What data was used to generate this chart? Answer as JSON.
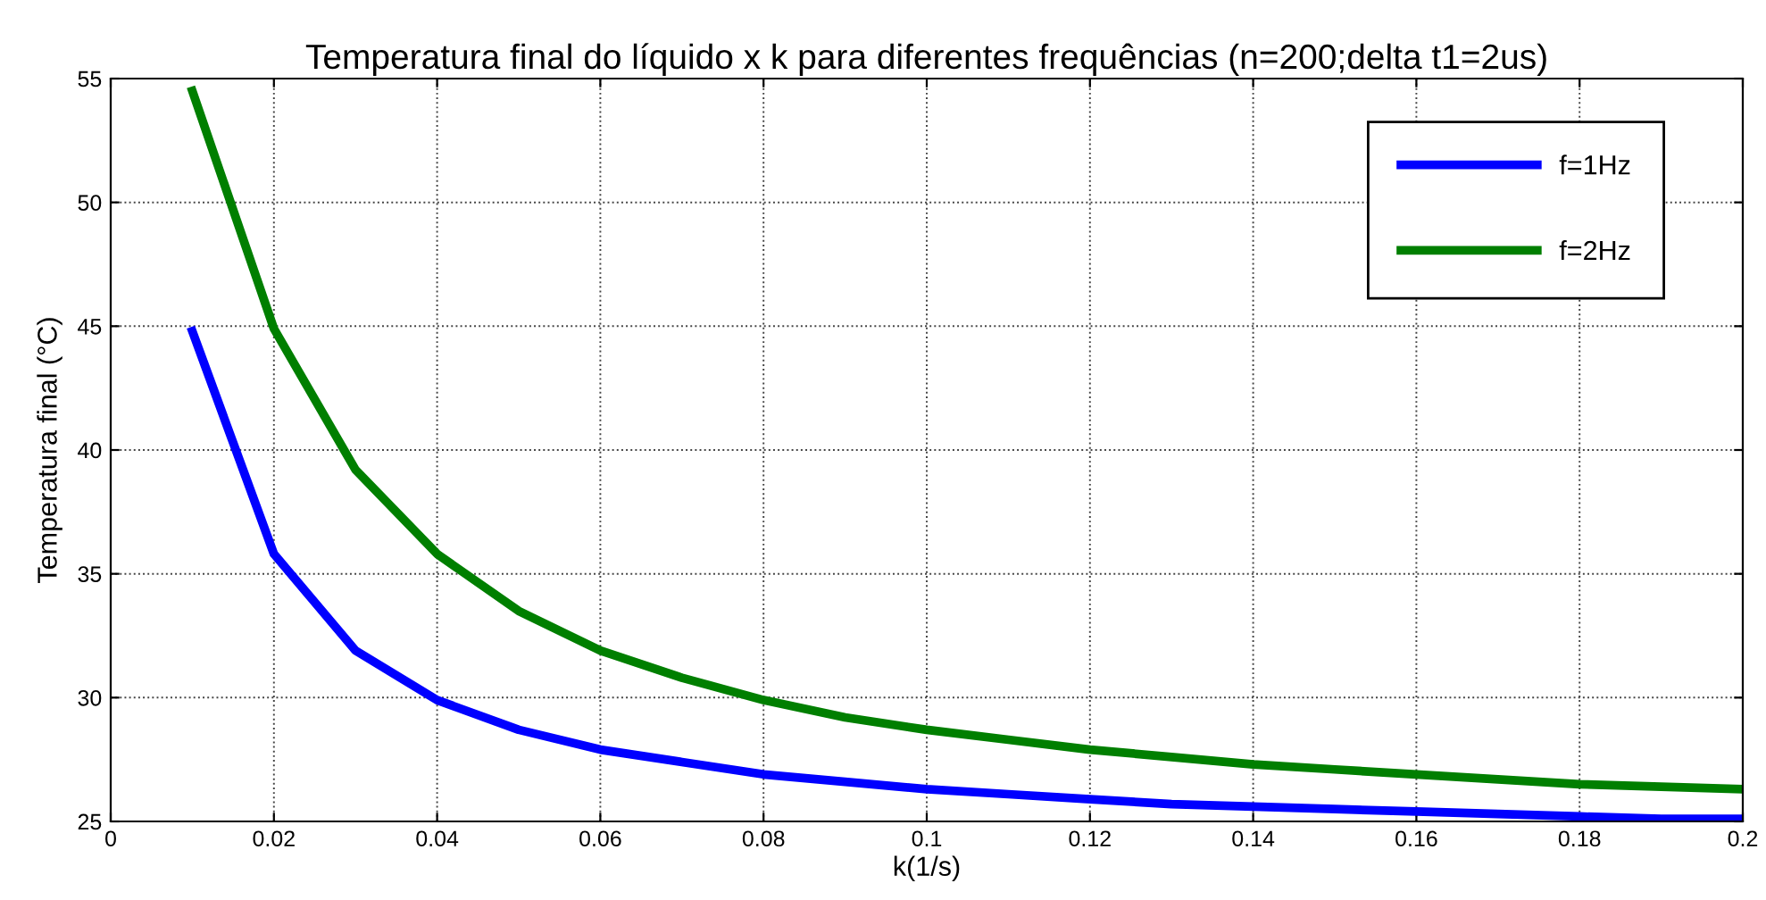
{
  "chart_data": {
    "type": "line",
    "title": "Temperatura final do líquido x k para diferentes frequências (n=200;delta t1=2us)",
    "xlabel": "k(1/s)",
    "ylabel": "Temperatura final (°C)",
    "x": [
      0.01,
      0.02,
      0.03,
      0.04,
      0.05,
      0.06,
      0.07,
      0.08,
      0.09,
      0.1,
      0.11,
      0.12,
      0.13,
      0.14,
      0.15,
      0.16,
      0.17,
      0.18,
      0.19,
      0.2
    ],
    "series": [
      {
        "name": "f=1Hz",
        "color": "#0000ff",
        "values": [
          44.8,
          35.8,
          31.9,
          29.9,
          28.7,
          27.9,
          27.4,
          26.9,
          26.6,
          26.3,
          26.1,
          25.9,
          25.7,
          25.6,
          25.5,
          25.4,
          25.3,
          25.2,
          25.1,
          25.1
        ]
      },
      {
        "name": "f=2Hz",
        "color": "#007f00",
        "values": [
          54.5,
          44.9,
          39.2,
          35.8,
          33.5,
          31.9,
          30.8,
          29.9,
          29.2,
          28.7,
          28.3,
          27.9,
          27.6,
          27.3,
          27.1,
          26.9,
          26.7,
          26.5,
          26.4,
          26.3
        ]
      }
    ],
    "xlim": [
      0,
      0.2
    ],
    "xticks": [
      0,
      0.02,
      0.04,
      0.06,
      0.08,
      0.1,
      0.12,
      0.14,
      0.16,
      0.18,
      0.2
    ],
    "ylim": [
      25,
      55
    ],
    "yticks": [
      25,
      30,
      35,
      40,
      45,
      50,
      55
    ],
    "grid": true,
    "legend": "top right",
    "line_style": "solid",
    "marker": "none"
  }
}
